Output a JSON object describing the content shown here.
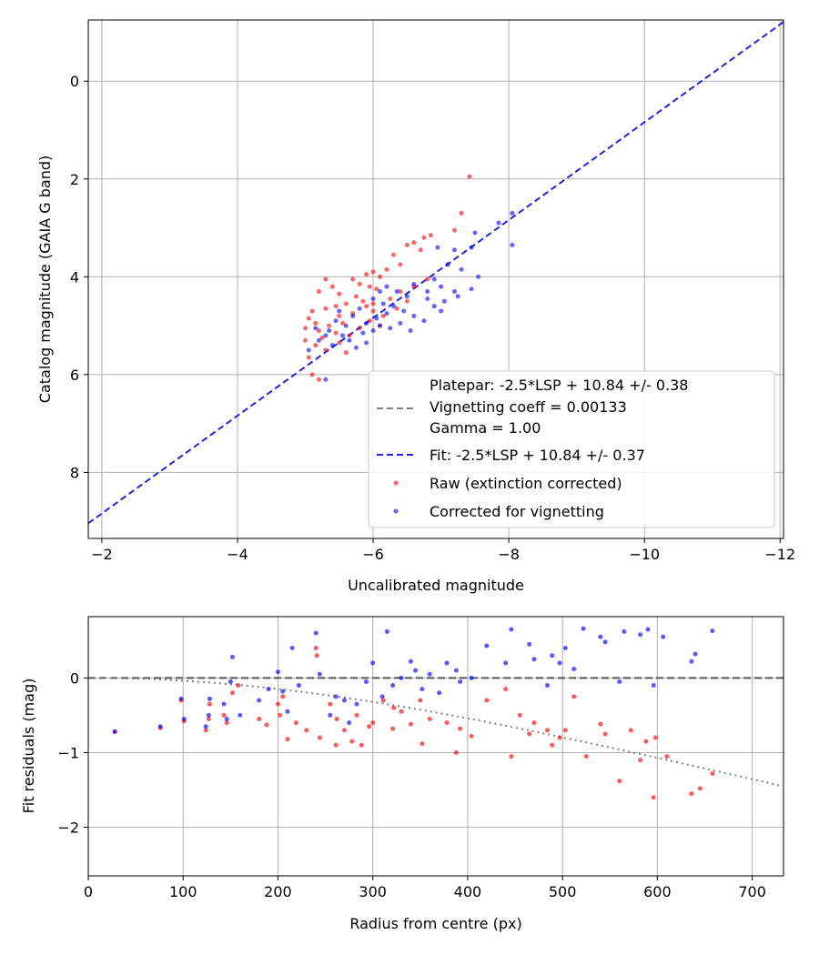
{
  "chart_data": [
    {
      "type": "scatter",
      "xlabel": "Uncalibrated magnitude",
      "ylabel": "Catalog magnitude (GAIA G band)",
      "xlim": [
        -1.8,
        -12.05
      ],
      "ylim": [
        9.35,
        -1.25
      ],
      "xticks": [
        -2,
        -4,
        -6,
        -8,
        -10,
        -12
      ],
      "xtick_labels": [
        "−2",
        "−4",
        "−6",
        "−8",
        "−10",
        "−12"
      ],
      "yticks": [
        0,
        2,
        4,
        6,
        8
      ],
      "ytick_labels": [
        "0",
        "2",
        "4",
        "6",
        "8"
      ],
      "grid": true,
      "legend_position": "lower-right",
      "legend": {
        "platepar_line1": "Platepar: -2.5*LSP + 10.84 +/- 0.38",
        "platepar_line2": "Vignetting coeff = 0.00133",
        "platepar_line3": "Gamma = 1.00",
        "fit": "Fit: -2.5*LSP + 10.84 +/- 0.37",
        "raw": "Raw (extinction corrected)",
        "corrected": "Corrected for vignetting"
      },
      "fit_line": {
        "slope": 1,
        "intercept": 10.84,
        "x_range": [
          -1.8,
          -12.05
        ]
      },
      "series": [
        {
          "name": "Raw (extinction corrected)",
          "color": "#ff0000",
          "points": [
            [
              -7.42,
              1.95
            ],
            [
              -7.3,
              2.7
            ],
            [
              -7.2,
              3.05
            ],
            [
              -6.85,
              3.15
            ],
            [
              -6.75,
              3.2
            ],
            [
              -6.6,
              3.3
            ],
            [
              -6.5,
              3.35
            ],
            [
              -6.7,
              3.45
            ],
            [
              -6.3,
              3.55
            ],
            [
              -6.4,
              3.75
            ],
            [
              -6.2,
              3.85
            ],
            [
              -6.0,
              3.9
            ],
            [
              -5.9,
              3.95
            ],
            [
              -6.1,
              4.0
            ],
            [
              -5.7,
              4.05
            ],
            [
              -5.8,
              4.15
            ],
            [
              -5.95,
              4.2
            ],
            [
              -6.05,
              4.25
            ],
            [
              -5.3,
              4.05
            ],
            [
              -5.4,
              4.2
            ],
            [
              -5.2,
              4.3
            ],
            [
              -5.5,
              4.35
            ],
            [
              -5.75,
              4.4
            ],
            [
              -5.85,
              4.5
            ],
            [
              -6.0,
              4.55
            ],
            [
              -5.9,
              4.6
            ],
            [
              -5.6,
              4.55
            ],
            [
              -5.45,
              4.6
            ],
            [
              -5.3,
              4.65
            ],
            [
              -5.1,
              4.7
            ],
            [
              -5.05,
              4.85
            ],
            [
              -5.15,
              4.95
            ],
            [
              -5.0,
              5.05
            ],
            [
              -5.2,
              5.1
            ],
            [
              -5.35,
              5.0
            ],
            [
              -5.55,
              4.95
            ],
            [
              -5.45,
              5.15
            ],
            [
              -5.25,
              5.25
            ],
            [
              -5.0,
              5.3
            ],
            [
              -5.15,
              5.4
            ],
            [
              -5.3,
              5.5
            ],
            [
              -5.5,
              5.35
            ],
            [
              -5.65,
              5.2
            ],
            [
              -5.8,
              5.05
            ],
            [
              -5.95,
              4.9
            ],
            [
              -6.15,
              4.8
            ],
            [
              -6.35,
              4.65
            ],
            [
              -6.5,
              4.5
            ],
            [
              -6.25,
              4.45
            ],
            [
              -6.4,
              4.3
            ],
            [
              -5.05,
              5.65
            ],
            [
              -5.1,
              6.0
            ],
            [
              -5.2,
              6.1
            ],
            [
              -5.6,
              5.55
            ],
            [
              -6.6,
              4.2
            ],
            [
              -6.8,
              4.05
            ],
            [
              -6.0,
              4.7
            ],
            [
              -5.7,
              4.75
            ],
            [
              -5.5,
              4.8
            ],
            [
              -6.1,
              5.0
            ]
          ]
        },
        {
          "name": "Corrected for vignetting",
          "color": "#0000ff",
          "points": [
            [
              -8.05,
              2.7
            ],
            [
              -7.85,
              2.9
            ],
            [
              -8.05,
              3.35
            ],
            [
              -7.5,
              3.1
            ],
            [
              -7.45,
              3.4
            ],
            [
              -7.2,
              3.45
            ],
            [
              -6.95,
              3.4
            ],
            [
              -7.1,
              3.75
            ],
            [
              -7.3,
              3.85
            ],
            [
              -7.55,
              4.0
            ],
            [
              -7.45,
              4.25
            ],
            [
              -7.2,
              4.3
            ],
            [
              -7.0,
              4.2
            ],
            [
              -6.9,
              4.05
            ],
            [
              -6.8,
              4.3
            ],
            [
              -6.6,
              4.15
            ],
            [
              -6.5,
              4.4
            ],
            [
              -6.35,
              4.3
            ],
            [
              -6.2,
              4.2
            ],
            [
              -6.1,
              4.3
            ],
            [
              -6.0,
              4.45
            ],
            [
              -6.15,
              4.55
            ],
            [
              -6.3,
              4.6
            ],
            [
              -6.45,
              4.7
            ],
            [
              -6.6,
              4.8
            ],
            [
              -6.75,
              4.9
            ],
            [
              -6.9,
              4.6
            ],
            [
              -7.05,
              4.5
            ],
            [
              -7.25,
              4.4
            ],
            [
              -6.2,
              4.75
            ],
            [
              -6.05,
              4.85
            ],
            [
              -5.9,
              4.95
            ],
            [
              -5.8,
              4.65
            ],
            [
              -5.7,
              4.8
            ],
            [
              -5.6,
              5.0
            ],
            [
              -5.5,
              4.7
            ],
            [
              -5.45,
              4.9
            ],
            [
              -5.35,
              5.1
            ],
            [
              -5.3,
              5.2
            ],
            [
              -5.55,
              5.2
            ],
            [
              -5.65,
              5.3
            ],
            [
              -5.75,
              5.45
            ],
            [
              -5.9,
              5.35
            ],
            [
              -6.0,
              5.1
            ],
            [
              -6.1,
              5.0
            ],
            [
              -6.4,
              4.95
            ],
            [
              -5.15,
              5.05
            ],
            [
              -5.2,
              5.3
            ],
            [
              -5.05,
              5.5
            ],
            [
              -5.3,
              6.1
            ],
            [
              -5.4,
              5.4
            ],
            [
              -5.85,
              5.15
            ],
            [
              -6.25,
              5.05
            ],
            [
              -6.55,
              5.1
            ],
            [
              -6.8,
              4.45
            ],
            [
              -7.0,
              4.7
            ]
          ]
        }
      ]
    },
    {
      "type": "scatter",
      "xlabel": "Radius from centre (px)",
      "ylabel": "Fit residuals (mag)",
      "xlim": [
        0,
        733
      ],
      "ylim": [
        -2.65,
        0.82
      ],
      "xticks": [
        0,
        100,
        200,
        300,
        400,
        500,
        600,
        700
      ],
      "xtick_labels": [
        "0",
        "100",
        "200",
        "300",
        "400",
        "500",
        "600",
        "700"
      ],
      "yticks": [
        0,
        -1,
        -2
      ],
      "ytick_labels": [
        "0",
        "−1",
        "−2"
      ],
      "grid": true,
      "vignetting_coeff": 0.00133,
      "series": [
        {
          "name": "Raw (extinction corrected)",
          "color": "#ff0000",
          "points": [
            [
              28,
              -0.72
            ],
            [
              76,
              -0.67
            ],
            [
              98,
              -0.3
            ],
            [
              101,
              -0.58
            ],
            [
              124,
              -0.7
            ],
            [
              127,
              -0.55
            ],
            [
              128,
              -0.35
            ],
            [
              143,
              -0.5
            ],
            [
              146,
              -0.6
            ],
            [
              152,
              -0.2
            ],
            [
              158,
              -0.1
            ],
            [
              180,
              -0.55
            ],
            [
              188,
              -0.63
            ],
            [
              200,
              -0.35
            ],
            [
              202,
              -0.5
            ],
            [
              205,
              -0.25
            ],
            [
              210,
              -0.82
            ],
            [
              219,
              -0.6
            ],
            [
              230,
              -0.7
            ],
            [
              240,
              0.4
            ],
            [
              241,
              0.3
            ],
            [
              244,
              -0.8
            ],
            [
              255,
              -0.35
            ],
            [
              261,
              -0.9
            ],
            [
              270,
              -0.7
            ],
            [
              278,
              -0.85
            ],
            [
              283,
              -0.5
            ],
            [
              288,
              -0.9
            ],
            [
              296,
              -0.65
            ],
            [
              311,
              -0.3
            ],
            [
              321,
              -0.68
            ],
            [
              330,
              -0.45
            ],
            [
              340,
              -0.62
            ],
            [
              352,
              -0.88
            ],
            [
              360,
              -0.55
            ],
            [
              378,
              -0.6
            ],
            [
              388,
              -1.0
            ],
            [
              392,
              -0.68
            ],
            [
              404,
              -0.78
            ],
            [
              420,
              -0.3
            ],
            [
              440,
              -0.15
            ],
            [
              446,
              -1.05
            ],
            [
              465,
              -0.75
            ],
            [
              470,
              -0.6
            ],
            [
              484,
              -0.7
            ],
            [
              489,
              -0.9
            ],
            [
              497,
              -0.8
            ],
            [
              503,
              -0.7
            ],
            [
              512,
              -0.25
            ],
            [
              525,
              -1.05
            ],
            [
              540,
              -0.62
            ],
            [
              545,
              -0.75
            ],
            [
              560,
              -1.38
            ],
            [
              572,
              -0.7
            ],
            [
              582,
              -1.1
            ],
            [
              588,
              -0.85
            ],
            [
              596,
              -1.6
            ],
            [
              610,
              -1.05
            ],
            [
              636,
              -1.55
            ],
            [
              645,
              -1.48
            ],
            [
              658,
              -1.28
            ],
            [
              598,
              -0.8
            ],
            [
              455,
              -0.5
            ],
            [
              300,
              -0.6
            ],
            [
              350,
              -0.3
            ],
            [
              322,
              -0.4
            ],
            [
              262,
              -0.55
            ]
          ]
        },
        {
          "name": "Corrected for vignetting",
          "color": "#0000ff",
          "points": [
            [
              28,
              -0.72
            ],
            [
              76,
              -0.65
            ],
            [
              98,
              -0.28
            ],
            [
              101,
              -0.55
            ],
            [
              124,
              -0.65
            ],
            [
              127,
              -0.5
            ],
            [
              128,
              -0.28
            ],
            [
              143,
              -0.35
            ],
            [
              146,
              -0.55
            ],
            [
              150,
              -0.05
            ],
            [
              152,
              0.28
            ],
            [
              160,
              -0.5
            ],
            [
              180,
              -0.3
            ],
            [
              190,
              -0.15
            ],
            [
              200,
              0.08
            ],
            [
              205,
              -0.18
            ],
            [
              210,
              -0.45
            ],
            [
              215,
              0.4
            ],
            [
              222,
              -0.1
            ],
            [
              240,
              0.6
            ],
            [
              244,
              0.05
            ],
            [
              255,
              -0.5
            ],
            [
              261,
              -0.25
            ],
            [
              270,
              -0.3
            ],
            [
              283,
              -0.35
            ],
            [
              293,
              -0.05
            ],
            [
              300,
              0.2
            ],
            [
              315,
              0.62
            ],
            [
              321,
              -0.1
            ],
            [
              330,
              0.0
            ],
            [
              340,
              0.22
            ],
            [
              352,
              -0.15
            ],
            [
              360,
              0.05
            ],
            [
              370,
              -0.2
            ],
            [
              378,
              0.2
            ],
            [
              388,
              0.1
            ],
            [
              392,
              -0.05
            ],
            [
              404,
              0.0
            ],
            [
              420,
              0.43
            ],
            [
              440,
              0.2
            ],
            [
              446,
              0.65
            ],
            [
              465,
              0.45
            ],
            [
              470,
              0.25
            ],
            [
              484,
              -0.1
            ],
            [
              489,
              0.3
            ],
            [
              497,
              0.2
            ],
            [
              503,
              0.4
            ],
            [
              512,
              0.12
            ],
            [
              522,
              0.66
            ],
            [
              540,
              0.55
            ],
            [
              545,
              0.48
            ],
            [
              560,
              -0.05
            ],
            [
              565,
              0.62
            ],
            [
              582,
              0.58
            ],
            [
              590,
              0.65
            ],
            [
              596,
              -0.1
            ],
            [
              606,
              0.55
            ],
            [
              636,
              0.22
            ],
            [
              640,
              0.32
            ],
            [
              658,
              0.63
            ],
            [
              275,
              -0.6
            ],
            [
              310,
              -0.25
            ],
            [
              345,
              0.1
            ]
          ]
        }
      ]
    }
  ]
}
